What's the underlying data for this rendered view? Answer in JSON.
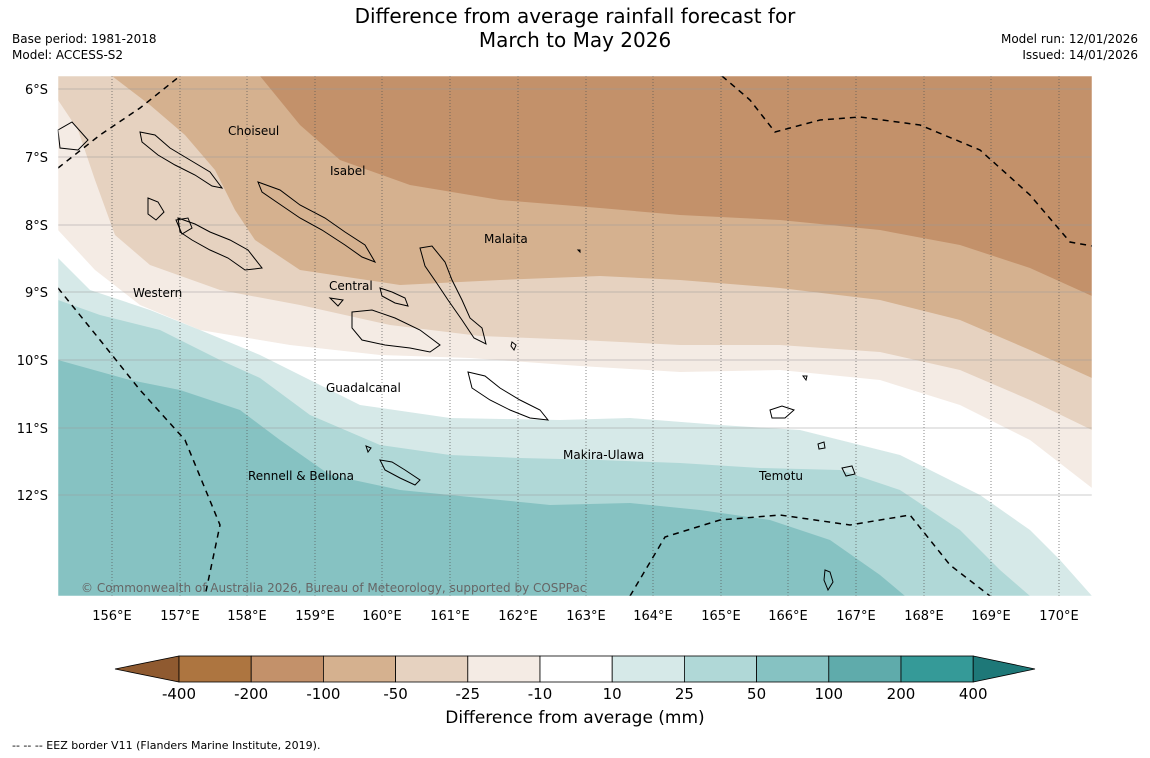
{
  "title": {
    "line1": "Difference from average rainfall forecast for",
    "line2": "March to May 2026"
  },
  "meta": {
    "base_period": "Base period: 1981-2018",
    "model": "Model: ACCESS-S2",
    "model_run": "Model run: 12/01/2026",
    "issued": "Issued: 14/01/2026"
  },
  "map": {
    "lat_labels": [
      "6°S",
      "7°S",
      "8°S",
      "9°S",
      "10°S",
      "11°S",
      "12°S"
    ],
    "lon_labels": [
      "156°E",
      "157°E",
      "158°E",
      "159°E",
      "160°E",
      "161°E",
      "162°E",
      "163°E",
      "164°E",
      "165°E",
      "166°E",
      "167°E",
      "168°E",
      "169°E",
      "170°E"
    ],
    "regions": [
      {
        "name": "Choiseul"
      },
      {
        "name": "Isabel"
      },
      {
        "name": "Malaita"
      },
      {
        "name": "Western"
      },
      {
        "name": "Central"
      },
      {
        "name": "Guadalcanal"
      },
      {
        "name": "Makira-Ulawa"
      },
      {
        "name": "Temotu"
      },
      {
        "name": "Rennell & Bellona"
      }
    ],
    "copyright": "© Commonwealth of Australia 2026, Bureau of Meteorology, supported by COSPPac"
  },
  "colorbar": {
    "title": "Difference from average (mm)",
    "ticks": [
      "-400",
      "-200",
      "-100",
      "-50",
      "-25",
      "-10",
      "10",
      "25",
      "50",
      "100",
      "200",
      "400"
    ],
    "colors": [
      "#8f5a30",
      "#ad7540",
      "#c3916a",
      "#d5b18f",
      "#e6d2c0",
      "#f4ebe4",
      "#ffffff",
      "#d6e9e8",
      "#b0d8d7",
      "#86c2c2",
      "#5fabab",
      "#359a98",
      "#1e7878"
    ]
  },
  "footnote": "--  --  -- EEZ border V11 (Flanders Marine Institute, 2019)."
}
